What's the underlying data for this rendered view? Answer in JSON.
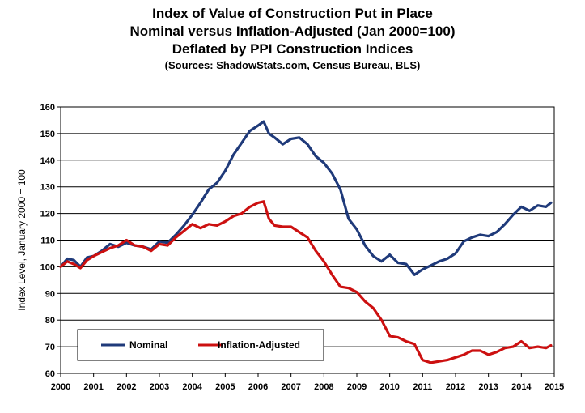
{
  "chart_data": {
    "type": "line",
    "title_lines": [
      "Index of Value of Construction Put in Place",
      "Nominal versus Inflation-Adjusted  (Jan 2000=100)",
      "Deflated by PPI Construction Indices"
    ],
    "subtitle": "(Sources: ShadowStats.com, Census Bureau, BLS)",
    "xlabel": "",
    "ylabel": "Index Level, January 2000 = 100",
    "xlim": [
      2000,
      2015
    ],
    "ylim": [
      60,
      160
    ],
    "x_ticks": [
      "2000",
      "2001",
      "2002",
      "2003",
      "2004",
      "2005",
      "2006",
      "2007",
      "2008",
      "2009",
      "2010",
      "2011",
      "2012",
      "2013",
      "2014",
      "2015"
    ],
    "y_ticks": [
      "60",
      "70",
      "80",
      "90",
      "100",
      "110",
      "120",
      "130",
      "140",
      "150",
      "160"
    ],
    "grid": true,
    "legend_position": "bottom-left",
    "series": [
      {
        "name": "Nominal",
        "color": "#1f3a7a",
        "x": [
          2000.0,
          2000.2,
          2000.4,
          2000.6,
          2000.8,
          2001.0,
          2001.25,
          2001.5,
          2001.75,
          2002.0,
          2002.25,
          2002.5,
          2002.75,
          2003.0,
          2003.25,
          2003.5,
          2003.75,
          2004.0,
          2004.25,
          2004.5,
          2004.75,
          2005.0,
          2005.25,
          2005.5,
          2005.75,
          2006.0,
          2006.17,
          2006.33,
          2006.5,
          2006.75,
          2007.0,
          2007.25,
          2007.5,
          2007.75,
          2008.0,
          2008.25,
          2008.5,
          2008.75,
          2009.0,
          2009.25,
          2009.5,
          2009.75,
          2010.0,
          2010.25,
          2010.5,
          2010.75,
          2011.0,
          2011.25,
          2011.5,
          2011.75,
          2012.0,
          2012.25,
          2012.5,
          2012.75,
          2013.0,
          2013.25,
          2013.5,
          2013.75,
          2014.0,
          2014.25,
          2014.5,
          2014.75,
          2014.9
        ],
        "values": [
          100,
          103,
          102.5,
          100,
          103.5,
          104,
          106,
          108.5,
          107.5,
          109,
          108,
          107.5,
          106.5,
          109.5,
          109,
          112,
          115.5,
          119.5,
          124,
          129,
          131.5,
          136,
          142,
          146.5,
          151,
          153,
          154.5,
          150,
          148.5,
          146,
          148,
          148.5,
          146,
          141.5,
          139,
          135,
          129,
          118,
          114,
          108,
          104,
          102,
          104.5,
          101.5,
          101,
          97,
          99,
          100.5,
          102,
          103,
          105,
          109.5,
          111,
          112,
          111.5,
          113,
          116,
          119.5,
          122.5,
          121,
          123,
          122.5,
          124
        ]
      },
      {
        "name": "Inflation-Adjusted",
        "color": "#cc1010",
        "x": [
          2000.0,
          2000.2,
          2000.4,
          2000.6,
          2000.8,
          2001.0,
          2001.25,
          2001.5,
          2001.75,
          2002.0,
          2002.25,
          2002.5,
          2002.75,
          2003.0,
          2003.25,
          2003.5,
          2003.75,
          2004.0,
          2004.25,
          2004.5,
          2004.75,
          2005.0,
          2005.25,
          2005.5,
          2005.75,
          2006.0,
          2006.17,
          2006.33,
          2006.5,
          2006.75,
          2007.0,
          2007.25,
          2007.5,
          2007.75,
          2008.0,
          2008.25,
          2008.5,
          2008.75,
          2009.0,
          2009.25,
          2009.5,
          2009.75,
          2010.0,
          2010.25,
          2010.5,
          2010.75,
          2011.0,
          2011.25,
          2011.5,
          2011.75,
          2012.0,
          2012.25,
          2012.5,
          2012.75,
          2013.0,
          2013.25,
          2013.5,
          2013.75,
          2014.0,
          2014.25,
          2014.5,
          2014.75,
          2014.9
        ],
        "values": [
          100,
          102,
          101,
          99.5,
          102.5,
          104,
          105.5,
          107,
          108,
          110,
          108,
          107.5,
          106,
          108.5,
          108,
          111,
          113.5,
          116,
          114.5,
          116,
          115.5,
          117,
          119,
          120,
          122.5,
          124,
          124.5,
          118,
          115.5,
          115,
          115,
          113,
          111,
          106,
          102,
          97,
          92.5,
          92,
          90.5,
          87,
          84.5,
          80,
          74,
          73.5,
          72,
          71,
          65,
          64,
          64.5,
          65,
          66,
          67,
          68.5,
          68.5,
          67,
          68,
          69.5,
          70,
          72,
          69.5,
          70,
          69.5,
          70.5
        ]
      }
    ]
  }
}
